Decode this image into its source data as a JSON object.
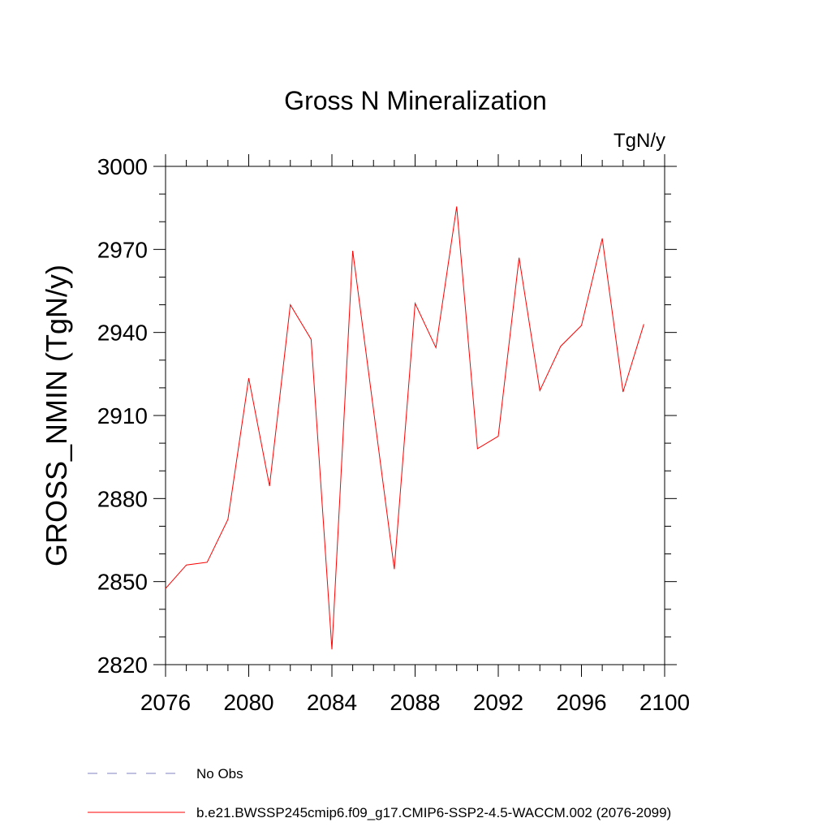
{
  "chart_data": {
    "type": "line",
    "title": "Gross N Mineralization",
    "units_label": "TgN/y",
    "xlabel": "",
    "ylabel": "GROSS_NMIN  (TgN/y)",
    "xlim": [
      2076,
      2100
    ],
    "ylim": [
      2820,
      3000
    ],
    "x_ticks": [
      2076,
      2080,
      2084,
      2088,
      2092,
      2096,
      2100
    ],
    "y_ticks": [
      2820,
      2850,
      2880,
      2910,
      2940,
      2970,
      3000
    ],
    "x_minor_step": 1,
    "y_minor_step": 10,
    "series": [
      {
        "name": "b.e21.BWSSP245cmip6.f09_g17.CMIP6-SSP2-4.5-WACCM.002 (2076-2099)",
        "color": "#ff0000",
        "style": "solid",
        "x": [
          2076,
          2077,
          2078,
          2079,
          2080,
          2081,
          2082,
          2083,
          2084,
          2085,
          2086,
          2087,
          2088,
          2089,
          2090,
          2091,
          2092,
          2093,
          2094,
          2095,
          2096,
          2097,
          2098,
          2099
        ],
        "y": [
          2847.5,
          2856.0,
          2857.0,
          2872.5,
          2923.5,
          2884.5,
          2950.0,
          2937.5,
          2825.5,
          2969.5,
          2912.0,
          2854.5,
          2950.5,
          2934.5,
          2985.5,
          2898.0,
          2902.5,
          2967.0,
          2919.0,
          2935.0,
          2942.5,
          2974.0,
          2918.5,
          2943.0
        ]
      }
    ],
    "legend": [
      {
        "label": "No Obs",
        "color": "#8080c0",
        "style": "dashed"
      },
      {
        "label": "b.e21.BWSSP245cmip6.f09_g17.CMIP6-SSP2-4.5-WACCM.002 (2076-2099)",
        "color": "#ff0000",
        "style": "solid"
      }
    ]
  }
}
